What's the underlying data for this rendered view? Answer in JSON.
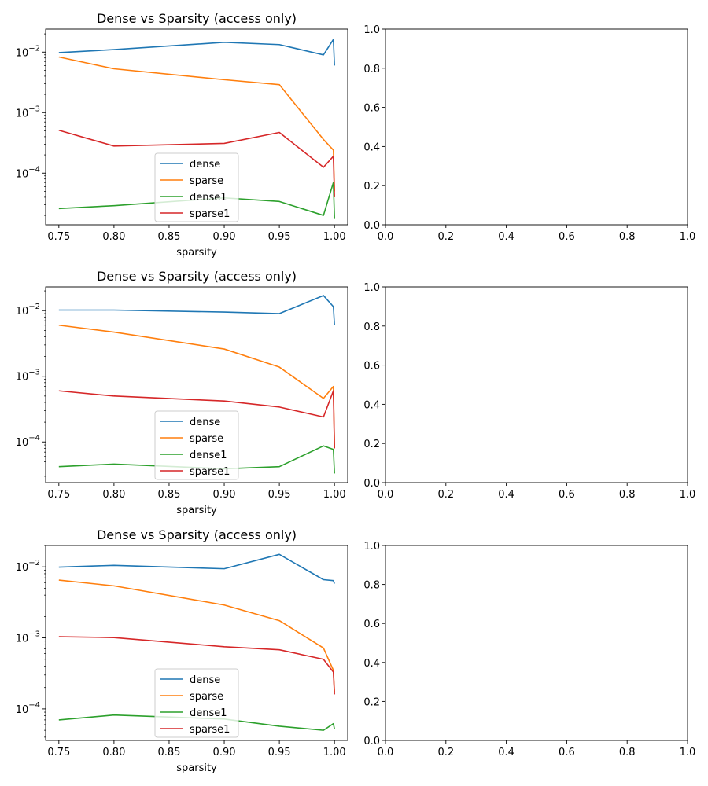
{
  "chart_data": [
    {
      "type": "line",
      "title": "Dense vs Sparsity (access only)",
      "xlabel": "sparsity",
      "ylabel": "",
      "yscale": "log",
      "xlim": [
        0.738,
        1.012
      ],
      "ylim": [
        1.4e-05,
        0.024
      ],
      "xticks": [
        "0.75",
        "0.80",
        "0.85",
        "0.90",
        "0.95",
        "1.00"
      ],
      "yticks": [
        "10^-2",
        "10^-3",
        "10^-4"
      ],
      "x": [
        0.75,
        0.8,
        0.9,
        0.95,
        0.99,
        0.999,
        1.0
      ],
      "legend": "lower center",
      "series": [
        {
          "name": "dense",
          "color": "#1f77b4",
          "values": [
            0.0098,
            0.011,
            0.0145,
            0.0133,
            0.009,
            0.0162,
            0.006
          ]
        },
        {
          "name": "sparse",
          "color": "#ff7f0e",
          "values": [
            0.0083,
            0.0053,
            0.0035,
            0.0029,
            0.00036,
            0.00024,
            5e-05
          ]
        },
        {
          "name": "dense1",
          "color": "#2ca02c",
          "values": [
            2.6e-05,
            2.9e-05,
            3.9e-05,
            3.4e-05,
            2e-05,
            7e-05,
            1.8e-05
          ]
        },
        {
          "name": "sparse1",
          "color": "#d62728",
          "values": [
            0.00051,
            0.00028,
            0.00031,
            0.00047,
            0.000125,
            0.00019,
            4e-05
          ]
        }
      ]
    },
    {
      "type": "line",
      "title": "Dense vs Sparsity (access only)",
      "xlabel": "sparsity",
      "ylabel": "",
      "yscale": "log",
      "xlim": [
        0.738,
        1.012
      ],
      "ylim": [
        2.4e-05,
        0.023
      ],
      "xticks": [
        "0.75",
        "0.80",
        "0.85",
        "0.90",
        "0.95",
        "1.00"
      ],
      "yticks": [
        "10^-2",
        "10^-3",
        "10^-4"
      ],
      "x": [
        0.75,
        0.8,
        0.9,
        0.95,
        0.99,
        0.999,
        1.0
      ],
      "legend": "lower center",
      "series": [
        {
          "name": "dense",
          "color": "#1f77b4",
          "values": [
            0.0102,
            0.0102,
            0.0095,
            0.009,
            0.017,
            0.0115,
            0.006
          ]
        },
        {
          "name": "sparse",
          "color": "#ff7f0e",
          "values": [
            0.006,
            0.0047,
            0.0026,
            0.00138,
            0.00046,
            0.0007,
            8e-05
          ]
        },
        {
          "name": "dense1",
          "color": "#2ca02c",
          "values": [
            4.2e-05,
            4.6e-05,
            3.9e-05,
            4.2e-05,
            8.7e-05,
            7.7e-05,
            3.3e-05
          ]
        },
        {
          "name": "sparse1",
          "color": "#d62728",
          "values": [
            0.0006,
            0.0005,
            0.00042,
            0.00034,
            0.00024,
            0.0006,
            8e-05
          ]
        }
      ]
    },
    {
      "type": "line",
      "title": "Dense vs Sparsity (access only)",
      "xlabel": "sparsity",
      "ylabel": "",
      "yscale": "log",
      "xlim": [
        0.738,
        1.012
      ],
      "ylim": [
        3.6e-05,
        0.02
      ],
      "xticks": [
        "0.75",
        "0.80",
        "0.85",
        "0.90",
        "0.95",
        "1.00"
      ],
      "yticks": [
        "10^-2",
        "10^-3",
        "10^-4"
      ],
      "x": [
        0.75,
        0.8,
        0.9,
        0.95,
        0.99,
        0.999,
        1.0
      ],
      "legend": "lower center",
      "series": [
        {
          "name": "dense",
          "color": "#1f77b4",
          "values": [
            0.0099,
            0.0105,
            0.0094,
            0.015,
            0.0066,
            0.0064,
            0.0058
          ]
        },
        {
          "name": "sparse",
          "color": "#ff7f0e",
          "values": [
            0.0065,
            0.0054,
            0.0029,
            0.00175,
            0.00072,
            0.00035,
            0.00017
          ]
        },
        {
          "name": "dense1",
          "color": "#2ca02c",
          "values": [
            7e-05,
            8.2e-05,
            7.2e-05,
            5.7e-05,
            5e-05,
            6.2e-05,
            5.2e-05
          ]
        },
        {
          "name": "sparse1",
          "color": "#d62728",
          "values": [
            0.00104,
            0.00101,
            0.00075,
            0.00068,
            0.0005,
            0.00033,
            0.00016
          ]
        }
      ]
    },
    {
      "type": "line",
      "title": "",
      "xlim": [
        0,
        1
      ],
      "ylim": [
        0,
        1
      ],
      "xticks": [
        "0.0",
        "0.2",
        "0.4",
        "0.6",
        "0.8",
        "1.0"
      ],
      "yticks": [
        "0.0",
        "0.2",
        "0.4",
        "0.6",
        "0.8",
        "1.0"
      ],
      "series": []
    },
    {
      "type": "line",
      "title": "",
      "xlim": [
        0,
        1
      ],
      "ylim": [
        0,
        1
      ],
      "xticks": [
        "0.0",
        "0.2",
        "0.4",
        "0.6",
        "0.8",
        "1.0"
      ],
      "yticks": [
        "0.0",
        "0.2",
        "0.4",
        "0.6",
        "0.8",
        "1.0"
      ],
      "series": []
    },
    {
      "type": "line",
      "title": "",
      "xlim": [
        0,
        1
      ],
      "ylim": [
        0,
        1
      ],
      "xticks": [
        "0.0",
        "0.2",
        "0.4",
        "0.6",
        "0.8",
        "1.0"
      ],
      "yticks": [
        "0.0",
        "0.2",
        "0.4",
        "0.6",
        "0.8",
        "1.0"
      ],
      "series": []
    }
  ]
}
